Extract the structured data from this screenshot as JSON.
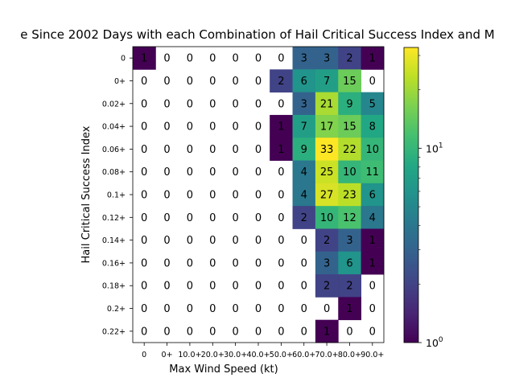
{
  "chart_data": {
    "type": "heatmap",
    "title": "e Since 2002 Days with each Combination of Hail Critical Success Index and M",
    "xlabel": "Max Wind Speed (kt)",
    "ylabel": "Hail Critical Success Index",
    "x_categories": [
      "0",
      "0+",
      "10.0+",
      "20.0+",
      "30.0+",
      "40.0+",
      "50.0+",
      "60.0+",
      "70.0+",
      "80.0+",
      "90.0+"
    ],
    "y_categories": [
      "0",
      "0+",
      "0.02+",
      "0.04+",
      "0.06+",
      "0.08+",
      "0.1+",
      "0.12+",
      "0.14+",
      "0.16+",
      "0.18+",
      "0.2+",
      "0.22+"
    ],
    "values": [
      [
        1,
        0,
        0,
        0,
        0,
        0,
        0,
        3,
        3,
        2,
        1
      ],
      [
        0,
        0,
        0,
        0,
        0,
        0,
        2,
        6,
        7,
        15,
        0
      ],
      [
        0,
        0,
        0,
        0,
        0,
        0,
        0,
        3,
        21,
        9,
        5
      ],
      [
        0,
        0,
        0,
        0,
        0,
        0,
        1,
        7,
        17,
        15,
        8
      ],
      [
        0,
        0,
        0,
        0,
        0,
        0,
        1,
        9,
        33,
        22,
        10
      ],
      [
        0,
        0,
        0,
        0,
        0,
        0,
        0,
        4,
        25,
        10,
        11
      ],
      [
        0,
        0,
        0,
        0,
        0,
        0,
        0,
        4,
        27,
        23,
        6
      ],
      [
        0,
        0,
        0,
        0,
        0,
        0,
        0,
        2,
        10,
        12,
        4
      ],
      [
        0,
        0,
        0,
        0,
        0,
        0,
        0,
        0,
        2,
        3,
        1
      ],
      [
        0,
        0,
        0,
        0,
        0,
        0,
        0,
        0,
        3,
        6,
        1
      ],
      [
        0,
        0,
        0,
        0,
        0,
        0,
        0,
        0,
        2,
        2,
        0
      ],
      [
        0,
        0,
        0,
        0,
        0,
        0,
        0,
        0,
        0,
        1,
        0
      ],
      [
        0,
        0,
        0,
        0,
        0,
        0,
        0,
        0,
        1,
        0,
        0
      ]
    ],
    "color_scale": "log",
    "colormap": "viridis",
    "colorbar_range": [
      1,
      33
    ],
    "colorbar_ticks": [
      {
        "value": 1,
        "label": "10",
        "sup": "0"
      },
      {
        "value": 10,
        "label": "10",
        "sup": "1"
      }
    ]
  }
}
